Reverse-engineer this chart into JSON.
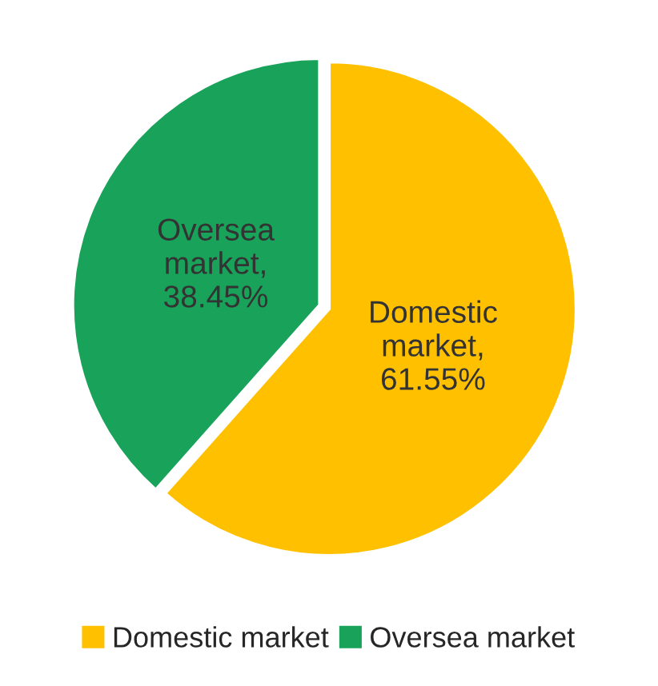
{
  "chart_data": {
    "type": "pie",
    "categories": [
      "Domestic market",
      "Oversea market"
    ],
    "values": [
      61.55,
      38.45
    ],
    "colors": [
      "#ffc000",
      "#19a35a"
    ],
    "value_labels": [
      "Domestic market, 61.55%",
      "Oversea market, 38.45%"
    ],
    "legend": "bottom"
  }
}
